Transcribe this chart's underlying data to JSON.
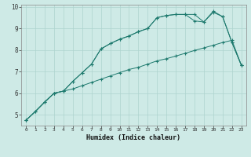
{
  "xlabel": "Humidex (Indice chaleur)",
  "bg_color": "#ceeae6",
  "line_color": "#1e7a6e",
  "grid_color": "#aed4cf",
  "xlim": [
    -0.5,
    23.5
  ],
  "ylim": [
    4.5,
    10.1
  ],
  "yticks": [
    5,
    6,
    7,
    8,
    9,
    10
  ],
  "xticks": [
    0,
    1,
    2,
    3,
    4,
    5,
    6,
    7,
    8,
    9,
    10,
    11,
    12,
    13,
    14,
    15,
    16,
    17,
    18,
    19,
    20,
    21,
    22,
    23
  ],
  "line1_x": [
    0,
    1,
    2,
    3,
    4,
    5,
    6,
    7,
    8,
    9,
    10,
    11,
    12,
    13,
    14,
    15,
    16,
    17,
    18,
    19,
    20,
    21,
    22,
    23
  ],
  "line1_y": [
    4.75,
    5.15,
    5.6,
    6.0,
    6.1,
    6.2,
    6.35,
    6.5,
    6.65,
    6.8,
    6.95,
    7.1,
    7.2,
    7.35,
    7.5,
    7.6,
    7.72,
    7.85,
    7.98,
    8.1,
    8.22,
    8.35,
    8.45,
    7.3
  ],
  "line2_x": [
    0,
    1,
    2,
    3,
    4,
    5,
    6,
    7,
    8,
    9,
    10,
    11,
    12,
    13,
    14,
    15,
    16,
    17,
    18,
    19,
    20,
    21,
    22,
    23
  ],
  "line2_y": [
    4.75,
    5.15,
    5.6,
    6.0,
    6.1,
    6.55,
    6.95,
    7.35,
    8.05,
    8.3,
    8.5,
    8.65,
    8.85,
    9.0,
    9.5,
    9.6,
    9.65,
    9.65,
    9.35,
    9.3,
    9.75,
    9.55,
    8.35,
    7.3
  ],
  "line3_x": [
    0,
    3,
    4,
    5,
    6,
    7,
    8,
    9,
    10,
    11,
    12,
    13,
    14,
    15,
    16,
    17,
    18,
    19,
    20,
    21,
    22,
    23
  ],
  "line3_y": [
    4.75,
    6.0,
    6.1,
    6.55,
    6.95,
    7.35,
    8.05,
    8.3,
    8.5,
    8.65,
    8.85,
    9.0,
    9.5,
    9.6,
    9.65,
    9.65,
    9.65,
    9.3,
    9.8,
    9.55,
    8.35,
    7.3
  ]
}
